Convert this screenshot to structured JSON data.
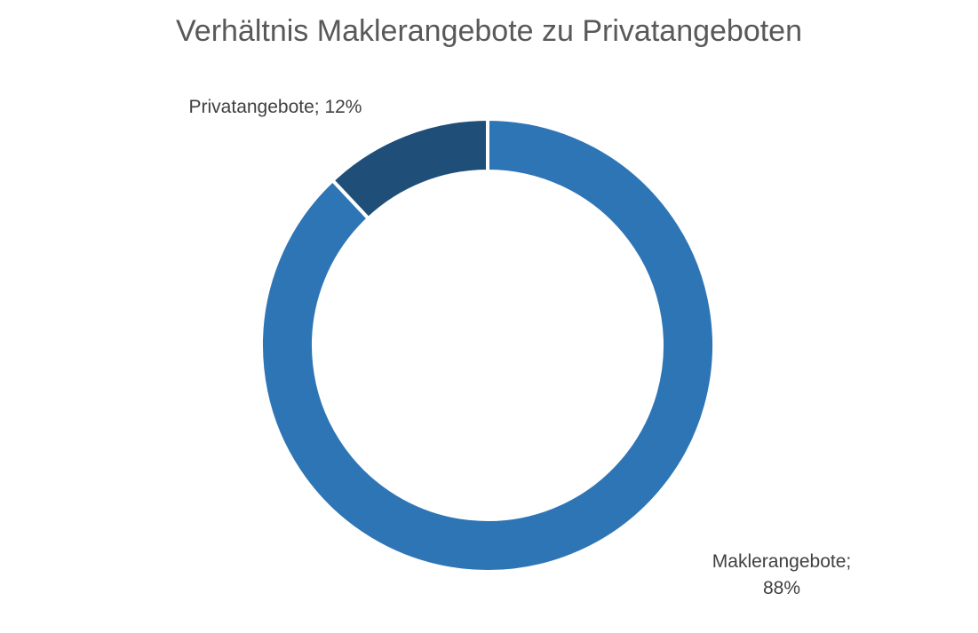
{
  "chart_data": {
    "type": "pie",
    "subtype": "doughnut",
    "title": "Verhältnis Maklerangebote zu Privatangeboten",
    "categories": [
      "Maklerangebote",
      "Privatangebote"
    ],
    "values": [
      88,
      12
    ],
    "unit": "%",
    "colors": [
      "#2E75B6",
      "#1F4E79"
    ],
    "data_labels": {
      "makler_name": "Maklerangebote;",
      "makler_value": "88%",
      "privat": "Privatangebote; 12%"
    },
    "legend": "none"
  }
}
